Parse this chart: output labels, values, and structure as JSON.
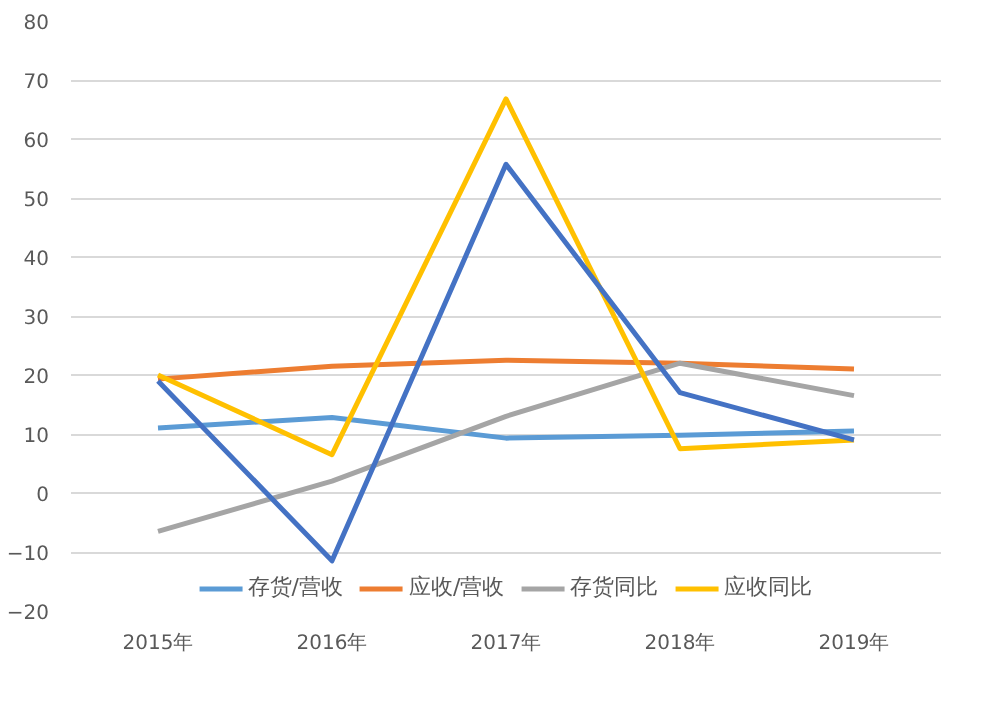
{
  "chart_data": {
    "type": "line",
    "categories": [
      "2015年",
      "2016年",
      "2017年",
      "2018年",
      "2019年"
    ],
    "series": [
      {
        "name": "存货/营收",
        "color": "#5b9bd5",
        "values": [
          11,
          12.8,
          9.3,
          9.8,
          10.5
        ]
      },
      {
        "name": "应收/营收",
        "color": "#ed7d31",
        "values": [
          19.3,
          21.5,
          22.5,
          22,
          21
        ]
      },
      {
        "name": "存货同比",
        "color": "#a5a5a5",
        "values": [
          -6.5,
          2,
          13,
          22,
          16.5
        ]
      },
      {
        "name": "应收同比",
        "color": "#ffc000",
        "values": [
          20,
          6.5,
          66.8,
          7.5,
          9
        ]
      },
      {
        "color": "#4472c4",
        "values": [
          19,
          -11.5,
          55.7,
          17,
          9
        ]
      }
    ],
    "ylim": [
      -20,
      80
    ],
    "yticks": [
      -20,
      -10,
      0,
      10,
      20,
      30,
      40,
      50,
      60,
      70,
      80
    ],
    "grid": "y",
    "legend": "bottom",
    "marker": "none",
    "line_style": "solid"
  }
}
